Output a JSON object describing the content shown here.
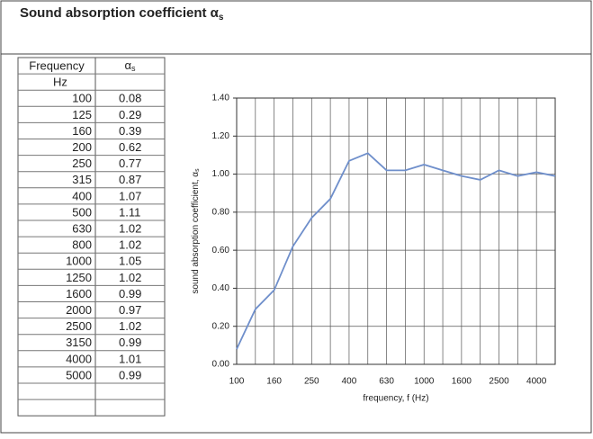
{
  "header": {
    "title": "Sound absorption coefficient α",
    "title_subscript": "s"
  },
  "table": {
    "columns": [
      {
        "label": "Frequency",
        "unit": "Hz"
      },
      {
        "label": "α",
        "subscript": "s"
      }
    ],
    "rows": [
      [
        100,
        0.08
      ],
      [
        125,
        0.29
      ],
      [
        160,
        0.39
      ],
      [
        200,
        0.62
      ],
      [
        250,
        0.77
      ],
      [
        315,
        0.87
      ],
      [
        400,
        1.07
      ],
      [
        500,
        1.11
      ],
      [
        630,
        1.02
      ],
      [
        800,
        1.02
      ],
      [
        1000,
        1.05
      ],
      [
        1250,
        1.02
      ],
      [
        1600,
        0.99
      ],
      [
        2000,
        0.97
      ],
      [
        2500,
        1.02
      ],
      [
        3150,
        0.99
      ],
      [
        4000,
        1.01
      ],
      [
        5000,
        0.99
      ]
    ]
  },
  "chart_data": {
    "type": "line",
    "x_label": "frequency, f (Hz)",
    "y_label": "sound absorption coefficient, α",
    "y_label_subscript": "s",
    "categories": [
      "100",
      null,
      "160",
      null,
      "250",
      null,
      "400",
      null,
      "630",
      null,
      "1000",
      null,
      "1600",
      null,
      "2500",
      null,
      "4000",
      null
    ],
    "series": [
      {
        "color": "#6f8fcb",
        "values": [
          0.08,
          0.29,
          0.39,
          0.62,
          0.77,
          0.87,
          1.07,
          1.11,
          1.02,
          1.02,
          1.05,
          1.02,
          0.99,
          0.97,
          1.02,
          0.99,
          1.01,
          0.99
        ]
      }
    ],
    "ylim": [
      0,
      1.4
    ],
    "yticks": [
      {
        "value": 0,
        "label": "0.00"
      },
      {
        "value": 0.2,
        "label": "0.20"
      },
      {
        "value": 0.4,
        "label": "0.40"
      },
      {
        "value": 0.6,
        "label": "0.60"
      },
      {
        "value": 0.8,
        "label": "0.80"
      },
      {
        "value": 1,
        "label": "1.00"
      },
      {
        "value": 1.2,
        "label": "1.20"
      },
      {
        "value": 1.4,
        "label": "1.40"
      }
    ],
    "grid": true
  }
}
